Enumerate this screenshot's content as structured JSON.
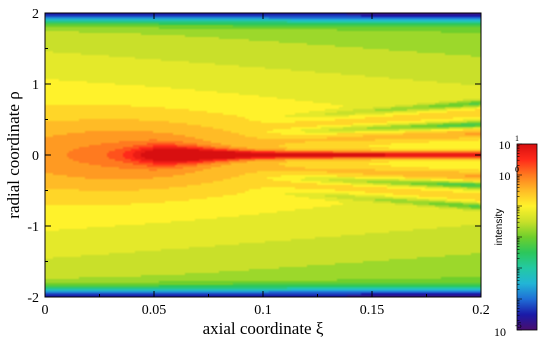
{
  "chart_data": {
    "type": "heatmap",
    "title": "",
    "xlabel": "axial coordinate ξ",
    "ylabel": "radial coordinate ρ",
    "xlim": [
      0,
      0.2
    ],
    "ylim": [
      -2,
      2
    ],
    "x_ticks": [
      0,
      0.05,
      0.1,
      0.15,
      0.2
    ],
    "x_tick_labels": [
      "0",
      "0.05",
      "0.1",
      "0.15",
      "0.2"
    ],
    "y_ticks": [
      2,
      1,
      0,
      -1,
      -2
    ],
    "y_tick_labels": [
      "2",
      "1",
      "0",
      "-1",
      "-2"
    ],
    "colorbar": {
      "label": "intensity",
      "scale": "log",
      "range": [
        1e-05,
        10
      ],
      "ticks": [
        {
          "base": "10",
          "exp": "1",
          "value": 10
        },
        {
          "base": "10",
          "exp": "0",
          "value": 1
        },
        {
          "base": "10",
          "exp": "-5",
          "value": 1e-05
        }
      ],
      "colormap": [
        "#4a0e6e",
        "#1a1aa8",
        "#1f6fd6",
        "#22b5d6",
        "#23c9a3",
        "#2cc75b",
        "#6fcf2c",
        "#c9e02a",
        "#fff22b",
        "#ffbb26",
        "#ff7a1f",
        "#ff2a1a",
        "#d80f10"
      ]
    },
    "features": [
      {
        "name": "on-axis focus",
        "xi_start": 0.05,
        "xi_end": 0.2,
        "rho": 0,
        "level": "max"
      },
      {
        "name": "side lobes",
        "xi_start": 0.1,
        "xi_end": 0.2,
        "rho": [
          -0.6,
          -0.3,
          0.3,
          0.6
        ]
      },
      {
        "name": "low-intensity edges",
        "rho": [
          -2,
          2
        ]
      }
    ],
    "grid": false,
    "legend": "colorbar-right"
  }
}
